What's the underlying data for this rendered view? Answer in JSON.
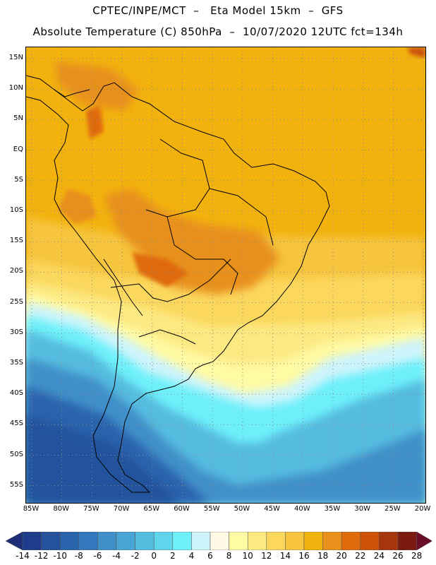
{
  "header": {
    "line1": "CPTEC/INPE/MCT  –   Eta Model 15km  –  GFS",
    "line2": "Absolute Temperature (C) 850hPa  –  10/07/2020 12UTC fct=134h"
  },
  "map": {
    "lat_labels": [
      "15N",
      "10N",
      "5N",
      "EQ",
      "5S",
      "10S",
      "15S",
      "20S",
      "25S",
      "30S",
      "35S",
      "40S",
      "45S",
      "50S",
      "55S"
    ],
    "lon_labels": [
      "85W",
      "80W",
      "75W",
      "70W",
      "65W",
      "60W",
      "55W",
      "50W",
      "45W",
      "40W",
      "35W",
      "30W",
      "25W",
      "20W"
    ],
    "gridlines": "dotted"
  },
  "colorbar": {
    "labels": [
      "-14",
      "-12",
      "-10",
      "-8",
      "-6",
      "-4",
      "-2",
      "0",
      "2",
      "4",
      "6",
      "8",
      "10",
      "12",
      "14",
      "16",
      "18",
      "20",
      "22",
      "24",
      "26",
      "28"
    ],
    "colors": [
      "#1e3c8c",
      "#24529c",
      "#2a64ad",
      "#3479bd",
      "#3f8fc9",
      "#49a5d4",
      "#54bcdf",
      "#5fd4ea",
      "#6ef0fa",
      "#cdf4fb",
      "#fff9e6",
      "#fffaa4",
      "#fde982",
      "#fbd75d",
      "#f6c43e",
      "#f2b20e",
      "#e8901a",
      "#df6b0c",
      "#cb5207",
      "#a8360d",
      "#7a1a10"
    ],
    "underflow_color": "#1c2f78",
    "overflow_color": "#6b0d26"
  }
}
